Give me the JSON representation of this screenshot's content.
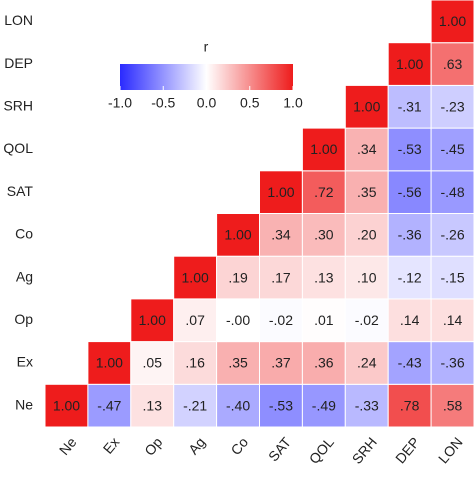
{
  "chart_data": {
    "type": "heatmap",
    "variables": [
      "Ne",
      "Ex",
      "Op",
      "Ag",
      "Co",
      "SAT",
      "QOL",
      "SRH",
      "DEP",
      "LON"
    ],
    "values": [
      [
        1.0,
        -0.47,
        0.13,
        -0.21,
        -0.4,
        -0.53,
        -0.49,
        -0.33,
        0.78,
        0.58
      ],
      [
        null,
        1.0,
        0.05,
        0.16,
        0.35,
        0.37,
        0.36,
        0.24,
        -0.43,
        -0.36
      ],
      [
        null,
        null,
        1.0,
        0.07,
        0,
        -0.02,
        0.01,
        -0.02,
        0.14,
        0.14
      ],
      [
        null,
        null,
        null,
        1.0,
        0.19,
        0.17,
        0.13,
        0.1,
        -0.12,
        -0.15
      ],
      [
        null,
        null,
        null,
        null,
        1.0,
        0.34,
        0.3,
        0.2,
        -0.36,
        -0.26
      ],
      [
        null,
        null,
        null,
        null,
        null,
        1.0,
        0.72,
        0.35,
        -0.56,
        -0.48
      ],
      [
        null,
        null,
        null,
        null,
        null,
        null,
        1.0,
        0.34,
        -0.53,
        -0.45
      ],
      [
        null,
        null,
        null,
        null,
        null,
        null,
        null,
        1.0,
        -0.31,
        -0.23
      ],
      [
        null,
        null,
        null,
        null,
        null,
        null,
        null,
        null,
        1.0,
        0.63
      ],
      [
        null,
        null,
        null,
        null,
        null,
        null,
        null,
        null,
        null,
        1.0
      ]
    ],
    "value_labels": [
      [
        "1.00",
        "-.47",
        ".13",
        "-.21",
        "-.40",
        "-.53",
        "-.49",
        "-.33",
        ".78",
        ".58"
      ],
      [
        null,
        "1.00",
        ".05",
        ".16",
        ".35",
        ".37",
        ".36",
        ".24",
        "-.43",
        "-.36"
      ],
      [
        null,
        null,
        "1.00",
        ".07",
        "-.00",
        "-.02",
        ".01",
        "-.02",
        ".14",
        ".14"
      ],
      [
        null,
        null,
        null,
        "1.00",
        ".19",
        ".17",
        ".13",
        ".10",
        "-.12",
        "-.15"
      ],
      [
        null,
        null,
        null,
        null,
        "1.00",
        ".34",
        ".30",
        ".20",
        "-.36",
        "-.26"
      ],
      [
        null,
        null,
        null,
        null,
        null,
        "1.00",
        ".72",
        ".35",
        "-.56",
        "-.48"
      ],
      [
        null,
        null,
        null,
        null,
        null,
        null,
        "1.00",
        ".34",
        "-.53",
        "-.45"
      ],
      [
        null,
        null,
        null,
        null,
        null,
        null,
        null,
        "1.00",
        "-.31",
        "-.23"
      ],
      [
        null,
        null,
        null,
        null,
        null,
        null,
        null,
        null,
        "1.00",
        ".63"
      ],
      [
        null,
        null,
        null,
        null,
        null,
        null,
        null,
        null,
        null,
        "1.00"
      ]
    ],
    "colorbar_title": "r",
    "clim": [
      -1,
      1
    ],
    "cticks": [
      {
        "value": -1,
        "label": "-1.0"
      },
      -0.5,
      {
        "value": 0,
        "label": "0.0"
      },
      0.5,
      {
        "value": 1,
        "label": "1.0"
      }
    ],
    "colorscale": [
      "#2a2aff",
      "#ffffff",
      "#ee1c1c"
    ]
  }
}
